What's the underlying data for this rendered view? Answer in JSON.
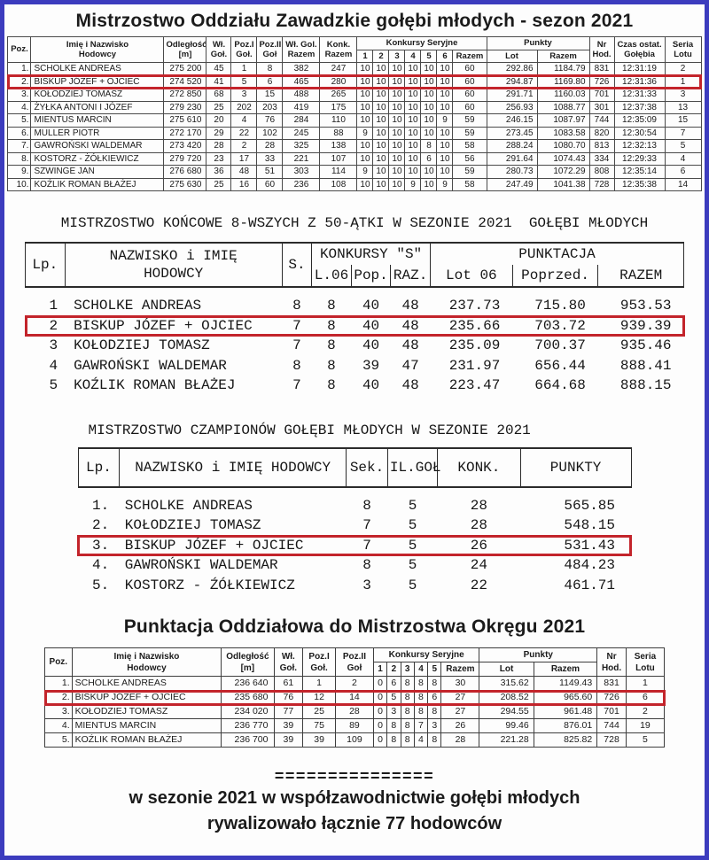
{
  "colors": {
    "page_border": "#3c3cbe",
    "highlight_box": "#c3242b"
  },
  "table1": {
    "title": "Mistrzostwo Oddziału Zawadzkie gołębi młodych - sezon 2021",
    "h": {
      "poz": "Poz.",
      "name": "Imię i Nazwisko\nHodowcy",
      "dist": "Odległość\n[m]",
      "wl": "Wł.\nGoł.",
      "poz1": "Poz.I\nGoł.",
      "poz2": "Poz.II\nGoł",
      "wlrazem": "Wł. Gol.\nRazem",
      "konkrazem": "Konk.\nRazem",
      "seryjne": "Konkursy Seryjne",
      "s1": "1",
      "s2": "2",
      "s3": "3",
      "s4": "4",
      "s5": "5",
      "s6": "6",
      "srazem": "Razem",
      "punkty": "Punkty",
      "lot": "Lot",
      "prazem": "Razem",
      "nr": "Nr\nHod.",
      "czas": "Czas ostat.\nGołębia",
      "seria": "Seria\nLotu"
    },
    "highlight_row": 1,
    "rows": [
      [
        "1.",
        "SCHOLKE ANDREAS",
        "275 200",
        "45",
        "1",
        "8",
        "382",
        "247",
        "10",
        "10",
        "10",
        "10",
        "10",
        "10",
        "60",
        "292.86",
        "1184.79",
        "831",
        "12:31:19",
        "2"
      ],
      [
        "2.",
        "BISKUP JÓZEF + OJCIEC",
        "274 520",
        "41",
        "5",
        "6",
        "465",
        "280",
        "10",
        "10",
        "10",
        "10",
        "10",
        "10",
        "60",
        "294.87",
        "1169.80",
        "726",
        "12:31:36",
        "1"
      ],
      [
        "3.",
        "KOŁODZIEJ TOMASZ",
        "272 850",
        "68",
        "3",
        "15",
        "488",
        "265",
        "10",
        "10",
        "10",
        "10",
        "10",
        "10",
        "60",
        "291.71",
        "1160.03",
        "701",
        "12:31:33",
        "3"
      ],
      [
        "4.",
        "ŻYŁKA ANTONI I JÓZEF",
        "279 230",
        "25",
        "202",
        "203",
        "419",
        "175",
        "10",
        "10",
        "10",
        "10",
        "10",
        "10",
        "60",
        "256.93",
        "1088.77",
        "301",
        "12:37:38",
        "13"
      ],
      [
        "5.",
        "MIENTUS MARCIN",
        "275 610",
        "20",
        "4",
        "76",
        "284",
        "110",
        "10",
        "10",
        "10",
        "10",
        "10",
        "9",
        "59",
        "246.15",
        "1087.97",
        "744",
        "12:35:09",
        "15"
      ],
      [
        "6.",
        "MULLER PIOTR",
        "272 170",
        "29",
        "22",
        "102",
        "245",
        "88",
        "9",
        "10",
        "10",
        "10",
        "10",
        "10",
        "59",
        "273.45",
        "1083.58",
        "820",
        "12:30:54",
        "7"
      ],
      [
        "7.",
        "GAWROŃSKI WALDEMAR",
        "273 420",
        "28",
        "2",
        "28",
        "325",
        "138",
        "10",
        "10",
        "10",
        "10",
        "8",
        "10",
        "58",
        "288.24",
        "1080.70",
        "813",
        "12:32:13",
        "5"
      ],
      [
        "8.",
        "KOSTORZ - ŻÓŁKIEWICZ",
        "279 720",
        "23",
        "17",
        "33",
        "221",
        "107",
        "10",
        "10",
        "10",
        "10",
        "6",
        "10",
        "56",
        "291.64",
        "1074.43",
        "334",
        "12:29:33",
        "4"
      ],
      [
        "9.",
        "SZWINGE JAN",
        "276 680",
        "36",
        "48",
        "51",
        "303",
        "114",
        "9",
        "10",
        "10",
        "10",
        "10",
        "10",
        "59",
        "280.73",
        "1072.29",
        "808",
        "12:35:14",
        "6"
      ],
      [
        "10.",
        "KOŹLIK ROMAN BŁAŻEJ",
        "275 630",
        "25",
        "16",
        "60",
        "236",
        "108",
        "10",
        "10",
        "10",
        "9",
        "10",
        "9",
        "58",
        "247.49",
        "1041.38",
        "728",
        "12:35:38",
        "14"
      ]
    ]
  },
  "table2": {
    "title": "MISTRZOSTWO KOŃCOWE 8-WSZYCH Z 50-ĄTKI W SEZONIE 2021  GOŁĘBI MŁODYCH",
    "h": {
      "lp": "Lp.",
      "name": "NAZWISKO i IMIĘ\nHODOWCY",
      "s": "S.",
      "konkursy": "KONKURSY \"S\"",
      "l06": "L.06",
      "pop": "Pop.",
      "raz": "RAZ.",
      "punktacja": "PUNKTACJA",
      "lot06": "Lot 06",
      "poprzed": "Poprzed.",
      "razem": "RAZEM"
    },
    "highlight_row": 1,
    "rows": [
      [
        "1",
        "SCHOLKE ANDREAS",
        "8",
        "8",
        "40",
        "48",
        "237.73",
        "715.80",
        "953.53"
      ],
      [
        "2",
        "BISKUP JÓZEF + OJCIEC",
        "7",
        "8",
        "40",
        "48",
        "235.66",
        "703.72",
        "939.39"
      ],
      [
        "3",
        "KOŁODZIEJ TOMASZ",
        "7",
        "8",
        "40",
        "48",
        "235.09",
        "700.37",
        "935.46"
      ],
      [
        "4",
        "GAWROŃSKI WALDEMAR",
        "8",
        "8",
        "39",
        "47",
        "231.97",
        "656.44",
        "888.41"
      ],
      [
        "5",
        "KOŹLIK ROMAN BŁAŻEJ",
        "7",
        "8",
        "40",
        "48",
        "223.47",
        "664.68",
        "888.15"
      ]
    ]
  },
  "table3": {
    "title": "MISTRZOSTWO CZAMPIONÓW GOŁĘBI MŁODYCH W SEZONIE 2021",
    "h": {
      "lp": "Lp.",
      "name": "NAZWISKO i IMIĘ HODOWCY",
      "sek": "Sek.",
      "ilgol": "IL.GOŁ",
      "konk": "KONK.",
      "punkty": "PUNKTY"
    },
    "highlight_row": 2,
    "rows": [
      [
        "1.",
        "SCHOLKE ANDREAS",
        "8",
        "5",
        "28",
        "565.85"
      ],
      [
        "2.",
        "KOŁODZIEJ TOMASZ",
        "7",
        "5",
        "28",
        "548.15"
      ],
      [
        "3.",
        "BISKUP JÓZEF + OJCIEC",
        "7",
        "5",
        "26",
        "531.43"
      ],
      [
        "4.",
        "GAWROŃSKI WALDEMAR",
        "8",
        "5",
        "24",
        "484.23"
      ],
      [
        "5.",
        "KOSTORZ - ŹÓŁKIEWICZ",
        "3",
        "5",
        "22",
        "461.71"
      ]
    ]
  },
  "table4": {
    "title": "Punktacja Oddziałowa do Mistrzostwa Okręgu 2021",
    "h": {
      "poz": "Poz.",
      "name": "Imię i Nazwisko\nHodowcy",
      "dist": "Odległość\n[m]",
      "wl": "Wł.\nGoł.",
      "poz1": "Poz.I\nGoł.",
      "poz2": "Poz.II\nGoł",
      "seryjne": "Konkursy Seryjne",
      "s1": "1",
      "s2": "2",
      "s3": "3",
      "s4": "4",
      "s5": "5",
      "srazem": "Razem",
      "punkty": "Punkty",
      "lot": "Lot",
      "prazem": "Razem",
      "nr": "Nr\nHod.",
      "seria": "Seria\nLotu"
    },
    "highlight_row": 1,
    "rows": [
      [
        "1.",
        "SCHOLKE ANDREAS",
        "236 640",
        "61",
        "1",
        "2",
        "0",
        "6",
        "8",
        "8",
        "8",
        "30",
        "315.62",
        "1149.43",
        "831",
        "1"
      ],
      [
        "2.",
        "BISKUP JÓZEF + OJCIEC",
        "235 680",
        "76",
        "12",
        "14",
        "0",
        "5",
        "8",
        "8",
        "6",
        "27",
        "208.52",
        "965.60",
        "726",
        "6"
      ],
      [
        "3.",
        "KOŁODZIEJ TOMASZ",
        "234 020",
        "77",
        "25",
        "28",
        "0",
        "3",
        "8",
        "8",
        "8",
        "27",
        "294.55",
        "961.48",
        "701",
        "2"
      ],
      [
        "4.",
        "MIENTUS MARCIN",
        "236 770",
        "39",
        "75",
        "89",
        "0",
        "8",
        "8",
        "7",
        "3",
        "26",
        "99.46",
        "876.01",
        "744",
        "19"
      ],
      [
        "5.",
        "KOŹLIK ROMAN BŁAŻEJ",
        "236 700",
        "39",
        "39",
        "109",
        "0",
        "8",
        "8",
        "4",
        "8",
        "28",
        "221.28",
        "825.82",
        "728",
        "5"
      ]
    ]
  },
  "footer": {
    "separator": "===============",
    "line1": "w sezonie 2021 w współzawodnictwie gołębi młodych",
    "line2": "rywalizowało łącznie 77 hodowców"
  }
}
